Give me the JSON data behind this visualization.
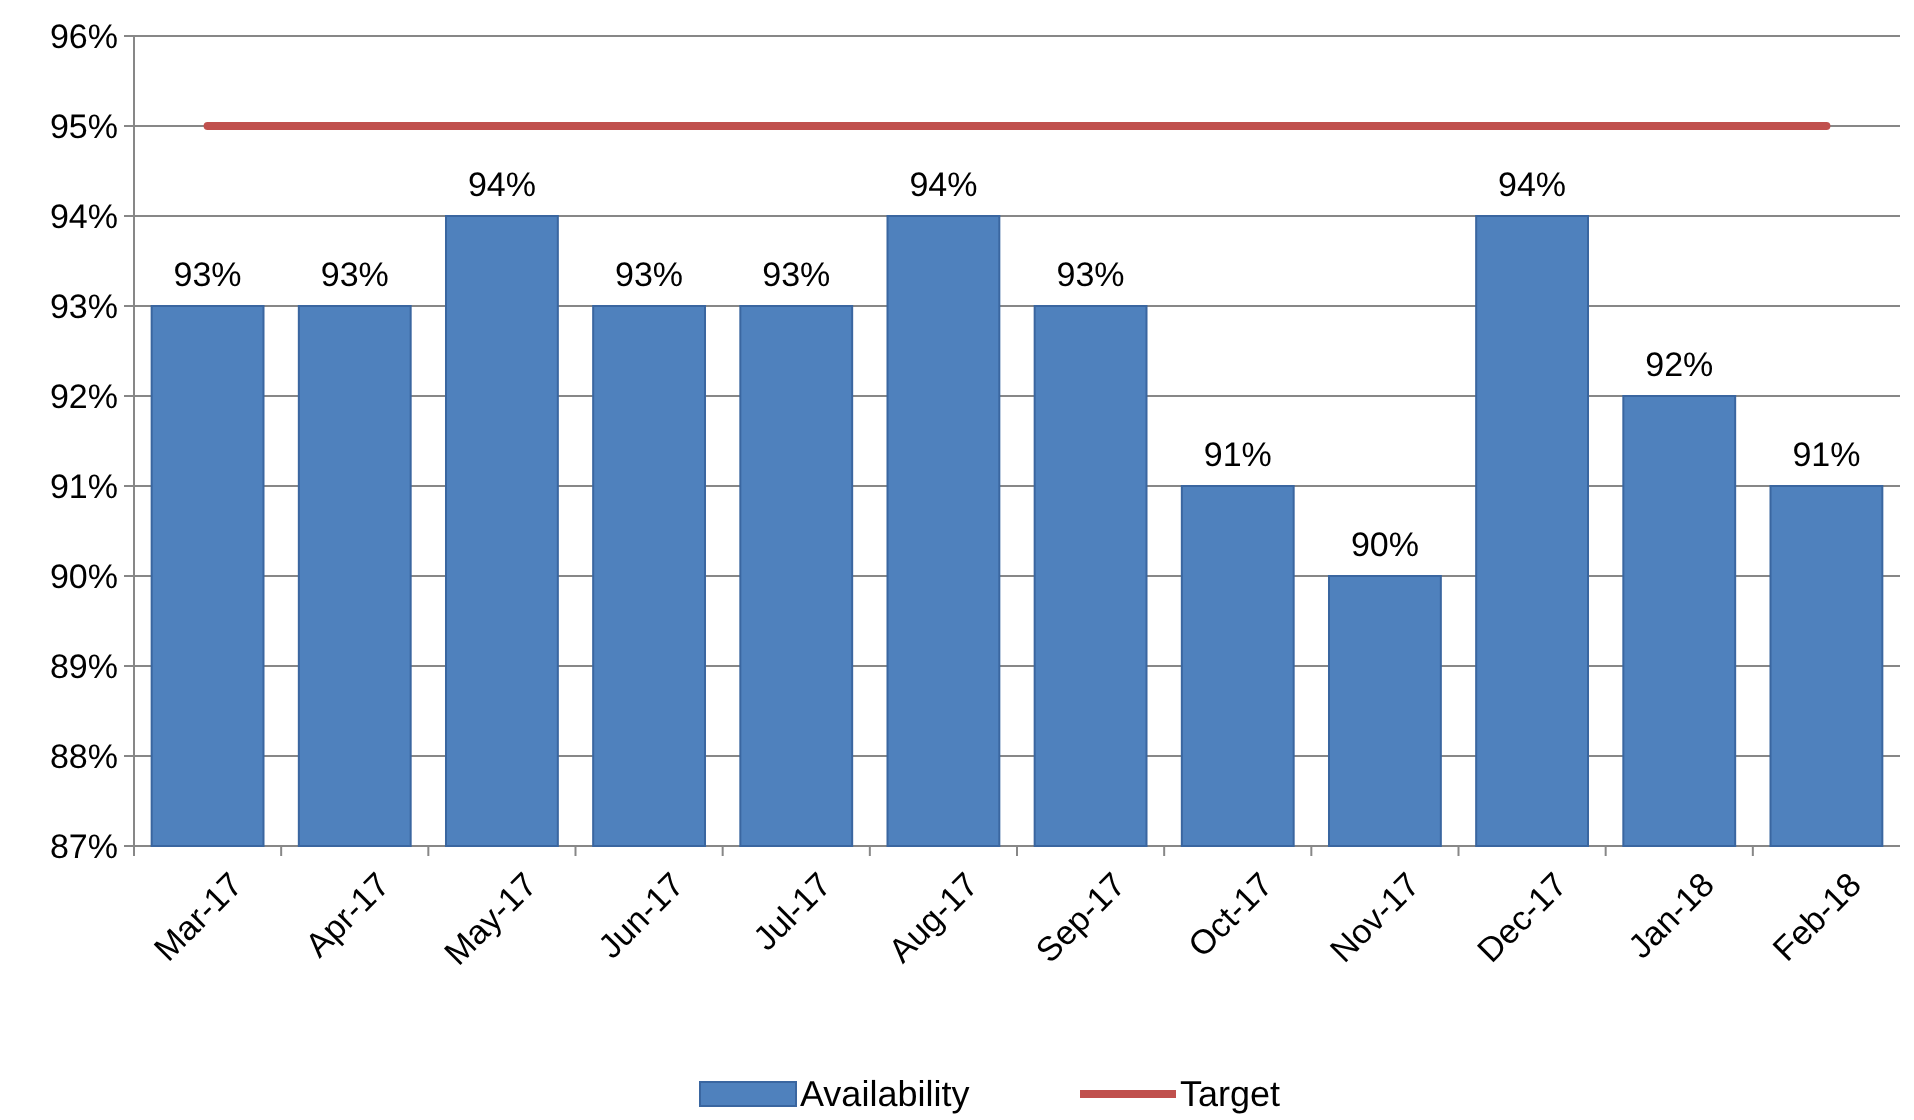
{
  "chart_data": {
    "type": "bar",
    "categories": [
      "Mar-17",
      "Apr-17",
      "May-17",
      "Jun-17",
      "Jul-17",
      "Aug-17",
      "Sep-17",
      "Oct-17",
      "Nov-17",
      "Dec-17",
      "Jan-18",
      "Feb-18"
    ],
    "series": [
      {
        "name": "Availability",
        "color": "#4f81bd",
        "values": [
          93,
          93,
          94,
          93,
          93,
          94,
          93,
          91,
          90,
          94,
          92,
          91
        ],
        "value_labels": [
          "93%",
          "93%",
          "94%",
          "93%",
          "93%",
          "94%",
          "93%",
          "91%",
          "90%",
          "94%",
          "92%",
          "91%"
        ]
      },
      {
        "name": "Target",
        "type": "line",
        "color": "#c0504d",
        "values": [
          95,
          95,
          95,
          95,
          95,
          95,
          95,
          95,
          95,
          95,
          95,
          95
        ]
      }
    ],
    "ylim": [
      87,
      96
    ],
    "yticks": [
      {
        "value": 87,
        "label": "87%"
      },
      {
        "value": 88,
        "label": "88%"
      },
      {
        "value": 89,
        "label": "89%"
      },
      {
        "value": 90,
        "label": "90%"
      },
      {
        "value": 91,
        "label": "91%"
      },
      {
        "value": 92,
        "label": "92%"
      },
      {
        "value": 93,
        "label": "93%"
      },
      {
        "value": 94,
        "label": "94%"
      },
      {
        "value": 95,
        "label": "95%"
      },
      {
        "value": 96,
        "label": "96%"
      }
    ],
    "grid": "y",
    "legend": "bottom"
  }
}
